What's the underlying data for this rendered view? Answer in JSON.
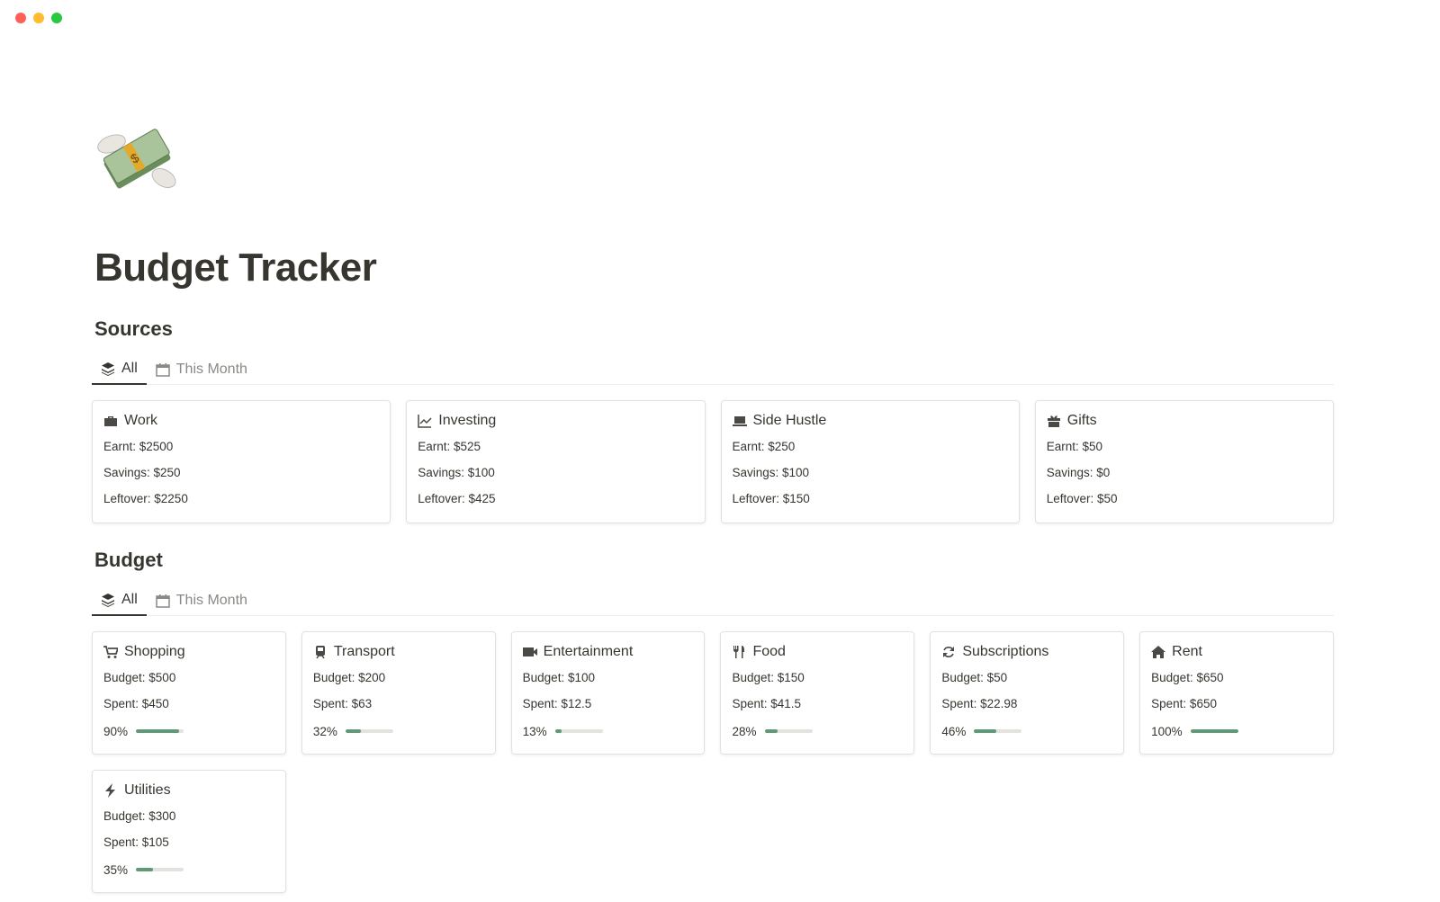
{
  "window": {
    "dots": [
      "#ff5f57",
      "#febc2e",
      "#28c840"
    ]
  },
  "page": {
    "icon": "money-with-wings-icon",
    "title": "Budget Tracker"
  },
  "sources": {
    "title": "Sources",
    "tabs": [
      {
        "label": "All",
        "icon": "stack-icon"
      },
      {
        "label": "This Month",
        "icon": "calendar-icon"
      }
    ],
    "cards": [
      {
        "name": "Work",
        "icon": "briefcase-icon",
        "earnt": "Earnt: $2500",
        "savings": "Savings: $250",
        "leftover": "Leftover: $2250"
      },
      {
        "name": "Investing",
        "icon": "chart-line-icon",
        "earnt": "Earnt: $525",
        "savings": "Savings: $100",
        "leftover": "Leftover: $425"
      },
      {
        "name": "Side Hustle",
        "icon": "laptop-icon",
        "earnt": "Earnt: $250",
        "savings": "Savings: $100",
        "leftover": "Leftover: $150"
      },
      {
        "name": "Gifts",
        "icon": "gift-icon",
        "earnt": "Earnt: $50",
        "savings": "Savings: $0",
        "leftover": "Leftover: $50"
      }
    ]
  },
  "budget": {
    "title": "Budget",
    "tabs": [
      {
        "label": "All",
        "icon": "stack-icon"
      },
      {
        "label": "This Month",
        "icon": "calendar-icon"
      }
    ],
    "progress_color": "#5e9a76",
    "cards": [
      {
        "name": "Shopping",
        "icon": "cart-icon",
        "budget": "Budget: $500",
        "spent": "Spent: $450",
        "percent": "90%",
        "value": 90
      },
      {
        "name": "Transport",
        "icon": "train-icon",
        "budget": "Budget: $200",
        "spent": "Spent: $63",
        "percent": "32%",
        "value": 32
      },
      {
        "name": "Entertainment",
        "icon": "video-icon",
        "budget": "Budget: $100",
        "spent": "Spent: $12.5",
        "percent": "13%",
        "value": 13
      },
      {
        "name": "Food",
        "icon": "utensils-icon",
        "budget": "Budget: $150",
        "spent": "Spent: $41.5",
        "percent": "28%",
        "value": 28
      },
      {
        "name": "Subscriptions",
        "icon": "refresh-icon",
        "budget": "Budget: $50",
        "spent": "Spent: $22.98",
        "percent": "46%",
        "value": 46
      },
      {
        "name": "Rent",
        "icon": "home-icon",
        "budget": "Budget: $650",
        "spent": "Spent: $650",
        "percent": "100%",
        "value": 100
      },
      {
        "name": "Utilities",
        "icon": "bolt-icon",
        "budget": "Budget: $300",
        "spent": "Spent: $105",
        "percent": "35%",
        "value": 35
      }
    ]
  }
}
